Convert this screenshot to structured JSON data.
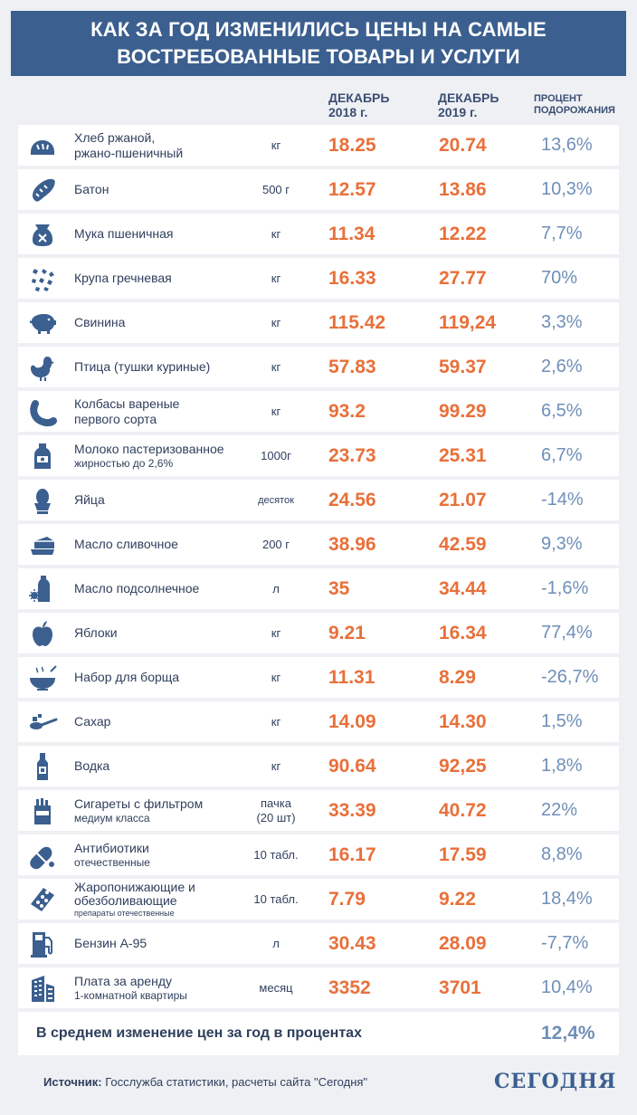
{
  "title": {
    "line1": "КАК ЗА ГОД ИЗМЕНИЛИСЬ ЦЕНЫ НА САМЫЕ",
    "line2": "ВОСТРЕБОВАННЫЕ ТОВАРЫ И УСЛУГИ"
  },
  "columns": {
    "dec2018_l1": "ДЕКАБРЬ",
    "dec2018_l2": "2018 г.",
    "dec2019_l1": "ДЕКАБРЬ",
    "dec2019_l2": "2019 г.",
    "pct_l1": "ПРОЦЕНТ",
    "pct_l2": "ПОДОРОЖАНИЯ"
  },
  "rows": [
    {
      "name1": "Хлеб ржаной,",
      "name2": "ржано-пшеничный",
      "unit1": "кг",
      "unit2": "",
      "v2018": "18.25",
      "v2019": "20.74",
      "pct": "13,6%",
      "icon": "bread-icon"
    },
    {
      "name1": "Батон",
      "name2": "",
      "unit1": "500 г",
      "unit2": "",
      "v2018": "12.57",
      "v2019": "13.86",
      "pct": "10,3%",
      "icon": "loaf-icon"
    },
    {
      "name1": "Мука пшеничная",
      "name2": "",
      "unit1": "кг",
      "unit2": "",
      "v2018": "11.34",
      "v2019": "12.22",
      "pct": "7,7%",
      "icon": "flour-bag-icon"
    },
    {
      "name1": "Крупа гречневая",
      "name2": "",
      "unit1": "кг",
      "unit2": "",
      "v2018": "16.33",
      "v2019": "27.77",
      "pct": "70%",
      "icon": "buckwheat-icon"
    },
    {
      "name1": "Свинина",
      "name2": "",
      "unit1": "кг",
      "unit2": "",
      "v2018": "115.42",
      "v2019": "119,24",
      "pct": "3,3%",
      "icon": "pig-icon"
    },
    {
      "name1": "Птица (тушки куриные)",
      "name2": "",
      "unit1": "кг",
      "unit2": "",
      "v2018": "57.83",
      "v2019": "59.37",
      "pct": "2,6%",
      "icon": "chicken-icon"
    },
    {
      "name1": "Колбасы вареные",
      "name2": "первого сорта",
      "unit1": "кг",
      "unit2": "",
      "v2018": "93.2",
      "v2019": "99.29",
      "pct": "6,5%",
      "icon": "sausage-icon"
    },
    {
      "name1": "Молоко пастеризованное",
      "name2": "жирностью до 2,6%",
      "name2_size": "sm",
      "unit1": "1000г",
      "unit2": "",
      "v2018": "23.73",
      "v2019": "25.31",
      "pct": "6,7%",
      "icon": "milk-bottle-icon"
    },
    {
      "name1": "Яйца",
      "name2": "",
      "unit1": "десяток",
      "unit_size": "sm",
      "unit2": "",
      "v2018": "24.56",
      "v2019": "21.07",
      "pct": "-14%",
      "icon": "egg-icon"
    },
    {
      "name1": "Масло сливочное",
      "name2": "",
      "unit1": "200 г",
      "unit2": "",
      "v2018": "38.96",
      "v2019": "42.59",
      "pct": "9,3%",
      "icon": "butter-icon"
    },
    {
      "name1": "Масло подсолнечное",
      "name2": "",
      "unit1": "л",
      "unit2": "",
      "v2018": "35",
      "v2019": "34.44",
      "pct": "-1,6%",
      "icon": "oil-bottle-icon"
    },
    {
      "name1": "Яблоки",
      "name2": "",
      "unit1": "кг",
      "unit2": "",
      "v2018": "9.21",
      "v2019": "16.34",
      "pct": "77,4%",
      "icon": "apple-icon"
    },
    {
      "name1": "Набор для борща",
      "name2": "",
      "unit1": "кг",
      "unit2": "",
      "v2018": "11.31",
      "v2019": "8.29",
      "pct": "-26,7%",
      "icon": "soup-bowl-icon"
    },
    {
      "name1": "Сахар",
      "name2": "",
      "unit1": "кг",
      "unit2": "",
      "v2018": "14.09",
      "v2019": "14.30",
      "pct": "1,5%",
      "icon": "sugar-spoon-icon"
    },
    {
      "name1": "Водка",
      "name2": "",
      "unit1": "кг",
      "unit2": "",
      "v2018": "90.64",
      "v2019": "92,25",
      "pct": "1,8%",
      "icon": "vodka-bottle-icon"
    },
    {
      "name1": "Сигареты с фильтром",
      "name2": "медиум класса",
      "name2_size": "sm",
      "unit1": "пачка",
      "unit2": "(20 шт)",
      "v2018": "33.39",
      "v2019": "40.72",
      "pct": "22%",
      "icon": "cigarettes-icon"
    },
    {
      "name1": "Антибиотики",
      "name2": "отечественные",
      "name2_size": "sm",
      "unit1": "10 табл.",
      "unit2": "",
      "v2018": "16.17",
      "v2019": "17.59",
      "pct": "8,8%",
      "icon": "pill-capsule-icon"
    },
    {
      "name1": "Жаропонижающие и",
      "name2": "обезболивающие",
      "name3": "препараты отечественные",
      "unit1": "10 табл.",
      "unit2": "",
      "v2018": "7.79",
      "v2019": "9.22",
      "pct": "18,4%",
      "icon": "pill-blister-icon"
    },
    {
      "name1": "Бензин А-95",
      "name2": "",
      "unit1": "л",
      "unit2": "",
      "v2018": "30.43",
      "v2019": "28.09",
      "pct": "-7,7%",
      "icon": "gas-pump-icon"
    },
    {
      "name1": "Плата за аренду",
      "name2": "1-комнатной квартиры",
      "name2_size": "sm",
      "unit1": "месяц",
      "unit2": "",
      "v2018": "3352",
      "v2019": "3701",
      "pct": "10,4%",
      "icon": "apartment-building-icon"
    }
  ],
  "summary": {
    "text": "В среднем изменение цен за год в процентах",
    "value": "12,4%"
  },
  "source": {
    "label": "Источник:",
    "text": " Госслужба статистики, расчеты сайта \"Сегодня\""
  },
  "brand": "СЕГОДНЯ",
  "colors": {
    "header_bg": "#3b5f8f",
    "price": "#e8703a",
    "percent": "#6f8fb8"
  }
}
